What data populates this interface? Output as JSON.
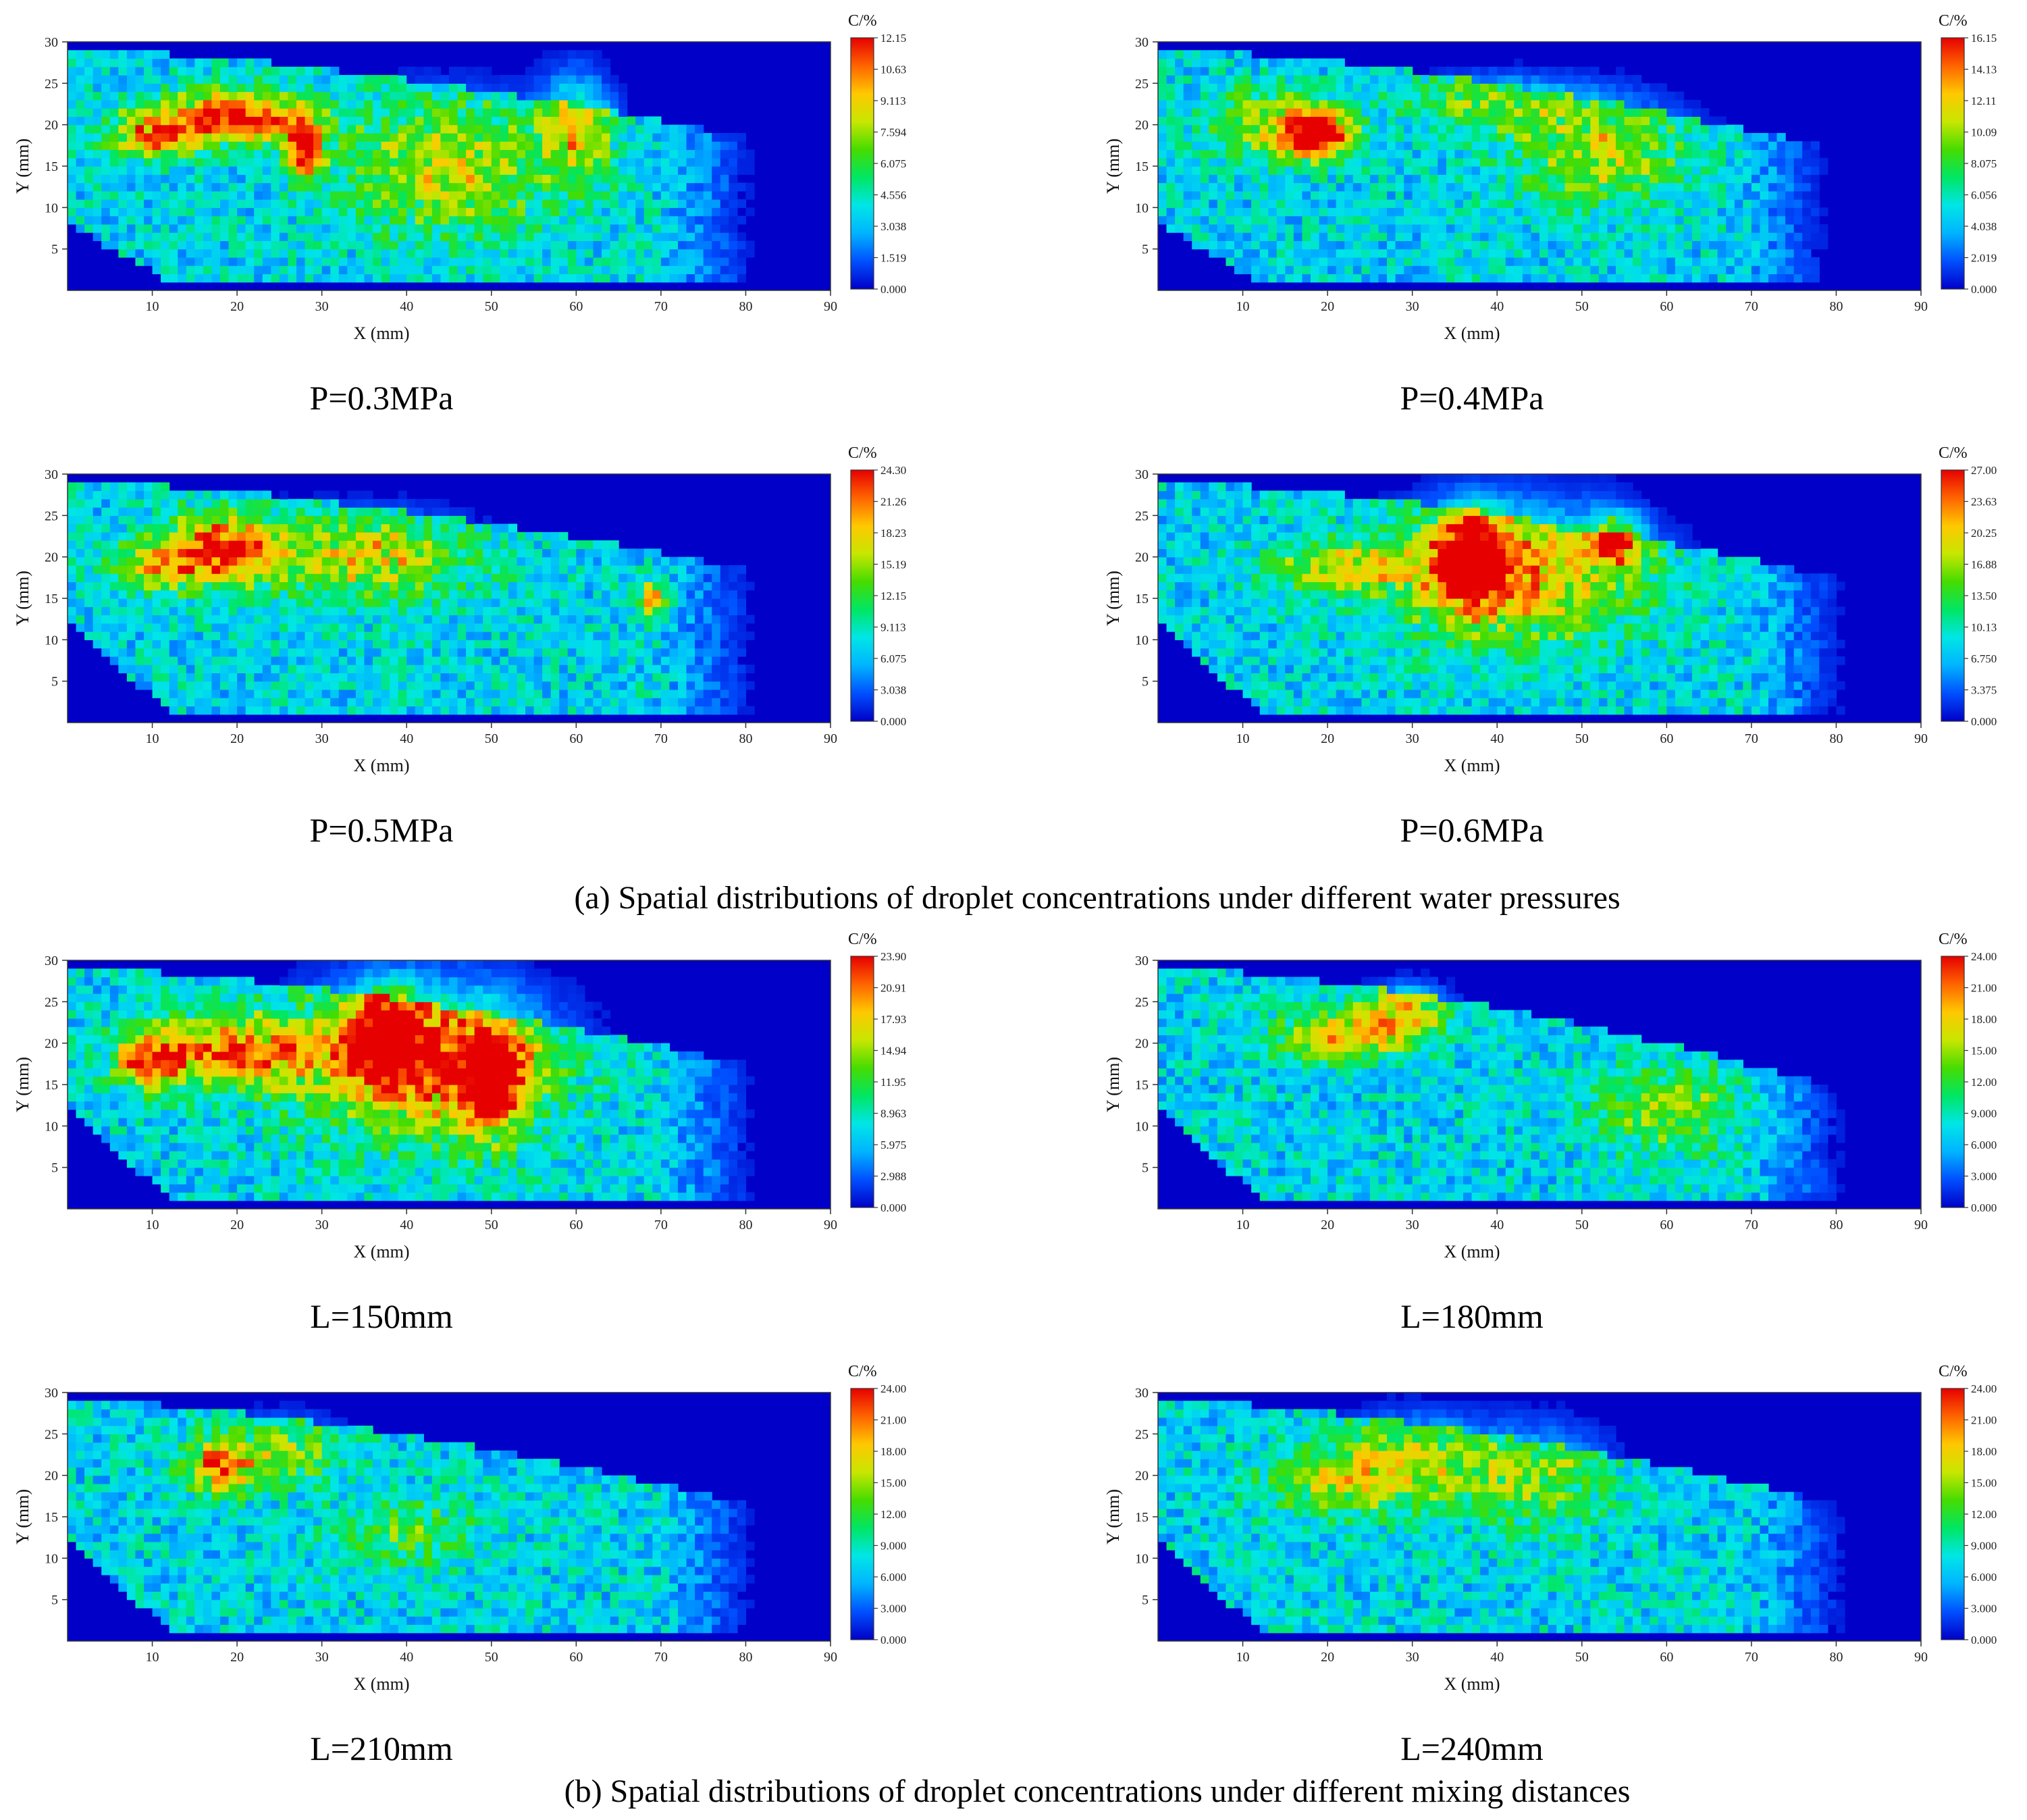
{
  "figure": {
    "caption_a": "(a) Spatial distributions of droplet concentrations under different water pressures",
    "caption_b": "(b) Spatial distributions of droplet concentrations under different mixing distances"
  },
  "colors": {
    "colormap": [
      "#0000c8",
      "#0050ff",
      "#00b4ff",
      "#00e6e6",
      "#00e664",
      "#46dc00",
      "#c8e600",
      "#ffc800",
      "#ff6400",
      "#e60000"
    ],
    "background_cell": "#0000c8"
  },
  "chart_data": [
    {
      "type": "heatmap",
      "panel_label": "P=0.3MPa",
      "xlabel": "X (mm)",
      "ylabel": "Y (mm)",
      "colorbar_label": "C/%",
      "xlim": [
        0,
        90
      ],
      "ylim": [
        0,
        30
      ],
      "grid": false,
      "xticks": [
        "10",
        "20",
        "30",
        "40",
        "50",
        "60",
        "70",
        "80",
        "90"
      ],
      "yticks": [
        "5",
        "10",
        "15",
        "20",
        "25",
        "30"
      ],
      "colorbar_ticks": [
        "12.15",
        "10.63",
        "9.113",
        "7.594",
        "6.075",
        "4.556",
        "3.038",
        "1.519",
        "0.000"
      ],
      "cmax": 12.15,
      "plume": {
        "x_start": 0,
        "x_end": 82,
        "y_top_left": 29,
        "y_top_right": 18,
        "y_bottom_left": 8
      },
      "hotspots": [
        {
          "x": 20,
          "y": 21,
          "sx": 8,
          "sy": 3,
          "c": 0.8
        },
        {
          "x": 10,
          "y": 19,
          "sx": 5,
          "sy": 3,
          "c": 0.55
        },
        {
          "x": 28,
          "y": 17,
          "sx": 2,
          "sy": 3,
          "c": 0.9
        },
        {
          "x": 45,
          "y": 15,
          "sx": 12,
          "sy": 8,
          "c": 0.4
        },
        {
          "x": 60,
          "y": 20,
          "sx": 4,
          "sy": 6,
          "c": 0.45
        }
      ]
    },
    {
      "type": "heatmap",
      "panel_label": "P=0.4MPa",
      "xlabel": "X (mm)",
      "ylabel": "Y (mm)",
      "colorbar_label": "C/%",
      "xlim": [
        0,
        90
      ],
      "ylim": [
        0,
        30
      ],
      "grid": false,
      "xticks": [
        "10",
        "20",
        "30",
        "40",
        "50",
        "60",
        "70",
        "80",
        "90"
      ],
      "yticks": [
        "5",
        "10",
        "15",
        "20",
        "25",
        "30"
      ],
      "colorbar_ticks": [
        "16.15",
        "14.13",
        "12.11",
        "10.09",
        "8.075",
        "6.056",
        "4.038",
        "2.019",
        "0.000"
      ],
      "cmax": 16.15,
      "plume": {
        "x_start": 0,
        "x_end": 80,
        "y_top_left": 29,
        "y_top_right": 17,
        "y_bottom_left": 8
      },
      "hotspots": [
        {
          "x": 19,
          "y": 19,
          "sx": 4,
          "sy": 3,
          "c": 0.95
        },
        {
          "x": 12,
          "y": 20,
          "sx": 6,
          "sy": 4,
          "c": 0.4
        },
        {
          "x": 52,
          "y": 17,
          "sx": 10,
          "sy": 6,
          "c": 0.4
        },
        {
          "x": 40,
          "y": 23,
          "sx": 10,
          "sy": 3,
          "c": 0.3
        }
      ]
    },
    {
      "type": "heatmap",
      "panel_label": "P=0.5MPa",
      "xlabel": "X (mm)",
      "ylabel": "Y (mm)",
      "colorbar_label": "C/%",
      "xlim": [
        0,
        90
      ],
      "ylim": [
        0,
        30
      ],
      "grid": false,
      "xticks": [
        "10",
        "20",
        "30",
        "40",
        "50",
        "60",
        "70",
        "80",
        "90"
      ],
      "yticks": [
        "5",
        "10",
        "15",
        "20",
        "25",
        "30"
      ],
      "colorbar_ticks": [
        "24.30",
        "21.26",
        "18.23",
        "15.19",
        "12.15",
        "9.113",
        "6.075",
        "3.038",
        "0.000"
      ],
      "cmax": 24.3,
      "plume": {
        "x_start": 0,
        "x_end": 82,
        "y_top_left": 29,
        "y_top_right": 18,
        "y_bottom_left": 12
      },
      "hotspots": [
        {
          "x": 18,
          "y": 21,
          "sx": 6,
          "sy": 4,
          "c": 0.75
        },
        {
          "x": 10,
          "y": 19,
          "sx": 5,
          "sy": 3,
          "c": 0.45
        },
        {
          "x": 35,
          "y": 20,
          "sx": 12,
          "sy": 5,
          "c": 0.45
        },
        {
          "x": 69,
          "y": 15,
          "sx": 2,
          "sy": 2,
          "c": 0.55
        }
      ]
    },
    {
      "type": "heatmap",
      "panel_label": "P=0.6MPa",
      "xlabel": "X (mm)",
      "ylabel": "Y (mm)",
      "colorbar_label": "C/%",
      "xlim": [
        0,
        90
      ],
      "ylim": [
        0,
        30
      ],
      "grid": false,
      "xticks": [
        "10",
        "20",
        "30",
        "40",
        "50",
        "60",
        "70",
        "80",
        "90"
      ],
      "yticks": [
        "5",
        "10",
        "15",
        "20",
        "25",
        "30"
      ],
      "colorbar_ticks": [
        "27.00",
        "23.63",
        "20.25",
        "16.88",
        "13.50",
        "10.13",
        "6.750",
        "3.375",
        "0.000"
      ],
      "cmax": 27.0,
      "plume": {
        "x_start": 0,
        "x_end": 82,
        "y_top_left": 29,
        "y_top_right": 17,
        "y_bottom_left": 12
      },
      "hotspots": [
        {
          "x": 37,
          "y": 20,
          "sx": 4,
          "sy": 5,
          "c": 0.95
        },
        {
          "x": 42,
          "y": 18,
          "sx": 14,
          "sy": 8,
          "c": 0.55
        },
        {
          "x": 22,
          "y": 19,
          "sx": 8,
          "sy": 3,
          "c": 0.4
        },
        {
          "x": 54,
          "y": 22,
          "sx": 3,
          "sy": 3,
          "c": 0.7
        }
      ]
    },
    {
      "type": "heatmap",
      "panel_label": "L=150mm",
      "xlabel": "X (mm)",
      "ylabel": "Y (mm)",
      "colorbar_label": "C/%",
      "xlim": [
        0,
        90
      ],
      "ylim": [
        0,
        30
      ],
      "grid": false,
      "xticks": [
        "10",
        "20",
        "30",
        "40",
        "50",
        "60",
        "70",
        "80",
        "90"
      ],
      "yticks": [
        "5",
        "10",
        "15",
        "20",
        "25",
        "30"
      ],
      "colorbar_ticks": [
        "23.90",
        "20.91",
        "17.93",
        "14.94",
        "11.95",
        "8.963",
        "5.975",
        "2.988",
        "0.000"
      ],
      "cmax": 23.9,
      "plume": {
        "x_start": 0,
        "x_end": 82,
        "y_top_left": 29,
        "y_top_right": 17,
        "y_bottom_left": 12
      },
      "hotspots": [
        {
          "x": 38,
          "y": 21,
          "sx": 4,
          "sy": 5,
          "c": 0.95
        },
        {
          "x": 50,
          "y": 16,
          "sx": 4,
          "sy": 6,
          "c": 0.85
        },
        {
          "x": 42,
          "y": 18,
          "sx": 14,
          "sy": 9,
          "c": 0.6
        },
        {
          "x": 20,
          "y": 19,
          "sx": 10,
          "sy": 4,
          "c": 0.6
        },
        {
          "x": 10,
          "y": 18,
          "sx": 4,
          "sy": 3,
          "c": 0.7
        }
      ]
    },
    {
      "type": "heatmap",
      "panel_label": "L=180mm",
      "xlabel": "X (mm)",
      "ylabel": "Y (mm)",
      "colorbar_label": "C/%",
      "xlim": [
        0,
        90
      ],
      "ylim": [
        0,
        30
      ],
      "grid": false,
      "xticks": [
        "10",
        "20",
        "30",
        "40",
        "50",
        "60",
        "70",
        "80",
        "90"
      ],
      "yticks": [
        "5",
        "10",
        "15",
        "20",
        "25",
        "30"
      ],
      "colorbar_ticks": [
        "24.00",
        "21.00",
        "18.00",
        "15.00",
        "12.00",
        "9.000",
        "6.000",
        "3.000",
        "0.000"
      ],
      "cmax": 24.0,
      "plume": {
        "x_start": 0,
        "x_end": 82,
        "y_top_left": 29,
        "y_top_right": 14,
        "y_bottom_left": 12
      },
      "hotspots": [
        {
          "x": 22,
          "y": 21,
          "sx": 8,
          "sy": 3,
          "c": 0.5
        },
        {
          "x": 29,
          "y": 24,
          "sx": 5,
          "sy": 3,
          "c": 0.45
        },
        {
          "x": 60,
          "y": 12,
          "sx": 8,
          "sy": 5,
          "c": 0.35
        }
      ]
    },
    {
      "type": "heatmap",
      "panel_label": "L=210mm",
      "xlabel": "X (mm)",
      "ylabel": "Y (mm)",
      "colorbar_label": "C/%",
      "xlim": [
        0,
        90
      ],
      "ylim": [
        0,
        30
      ],
      "grid": false,
      "xticks": [
        "10",
        "20",
        "30",
        "40",
        "50",
        "60",
        "70",
        "80",
        "90"
      ],
      "yticks": [
        "5",
        "10",
        "15",
        "20",
        "25",
        "30"
      ],
      "colorbar_ticks": [
        "24.00",
        "21.00",
        "18.00",
        "15.00",
        "12.00",
        "9.000",
        "6.000",
        "3.000",
        "0.000"
      ],
      "cmax": 24.0,
      "plume": {
        "x_start": 0,
        "x_end": 82,
        "y_top_left": 29,
        "y_top_right": 16,
        "y_bottom_left": 12
      },
      "hotspots": [
        {
          "x": 18,
          "y": 21,
          "sx": 4,
          "sy": 3,
          "c": 0.55
        },
        {
          "x": 25,
          "y": 23,
          "sx": 8,
          "sy": 4,
          "c": 0.3
        },
        {
          "x": 40,
          "y": 13,
          "sx": 8,
          "sy": 4,
          "c": 0.25
        }
      ]
    },
    {
      "type": "heatmap",
      "panel_label": "L=240mm",
      "xlabel": "X (mm)",
      "ylabel": "Y (mm)",
      "colorbar_label": "C/%",
      "xlim": [
        0,
        90
      ],
      "ylim": [
        0,
        30
      ],
      "grid": false,
      "xticks": [
        "10",
        "20",
        "30",
        "40",
        "50",
        "60",
        "70",
        "80",
        "90"
      ],
      "yticks": [
        "5",
        "10",
        "15",
        "20",
        "25",
        "30"
      ],
      "colorbar_ticks": [
        "24.00",
        "21.00",
        "18.00",
        "15.00",
        "12.00",
        "9.000",
        "6.000",
        "3.000",
        "0.000"
      ],
      "cmax": 24.0,
      "plume": {
        "x_start": 0,
        "x_end": 82,
        "y_top_left": 29,
        "y_top_right": 16,
        "y_bottom_left": 12
      },
      "hotspots": [
        {
          "x": 30,
          "y": 22,
          "sx": 9,
          "sy": 5,
          "c": 0.4
        },
        {
          "x": 20,
          "y": 19,
          "sx": 8,
          "sy": 4,
          "c": 0.3
        },
        {
          "x": 45,
          "y": 20,
          "sx": 8,
          "sy": 6,
          "c": 0.3
        }
      ]
    }
  ]
}
